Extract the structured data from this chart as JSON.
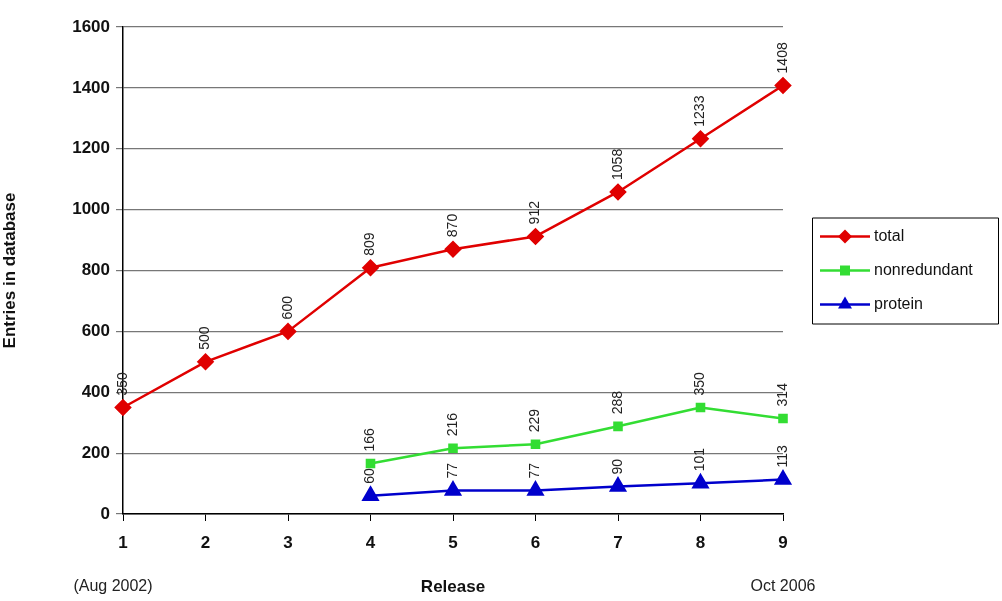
{
  "chart_data": {
    "type": "line",
    "xlabel": "Release",
    "ylabel": "Entries in database",
    "categories": [
      "1",
      "2",
      "3",
      "4",
      "5",
      "6",
      "7",
      "8",
      "9"
    ],
    "series": [
      {
        "name": "total",
        "color": "#e00000",
        "marker": "diamond",
        "values": [
          350,
          500,
          600,
          809,
          870,
          912,
          1058,
          1233,
          1408
        ]
      },
      {
        "name": "nonredundant",
        "color": "#33dd33",
        "marker": "square",
        "values": [
          null,
          null,
          null,
          166,
          216,
          229,
          288,
          350,
          314
        ]
      },
      {
        "name": "protein",
        "color": "#0000cc",
        "marker": "triangle",
        "values": [
          null,
          null,
          null,
          60,
          77,
          77,
          90,
          101,
          113
        ]
      }
    ],
    "ylim": [
      0,
      1600
    ],
    "yticks": [
      0,
      200,
      400,
      600,
      800,
      1000,
      1200,
      1400,
      1600
    ],
    "grid": "y",
    "legend": "right",
    "data_labels": true,
    "line_style": "solid",
    "annotations": [
      "(Aug 2002)",
      "Oct 2006"
    ]
  }
}
